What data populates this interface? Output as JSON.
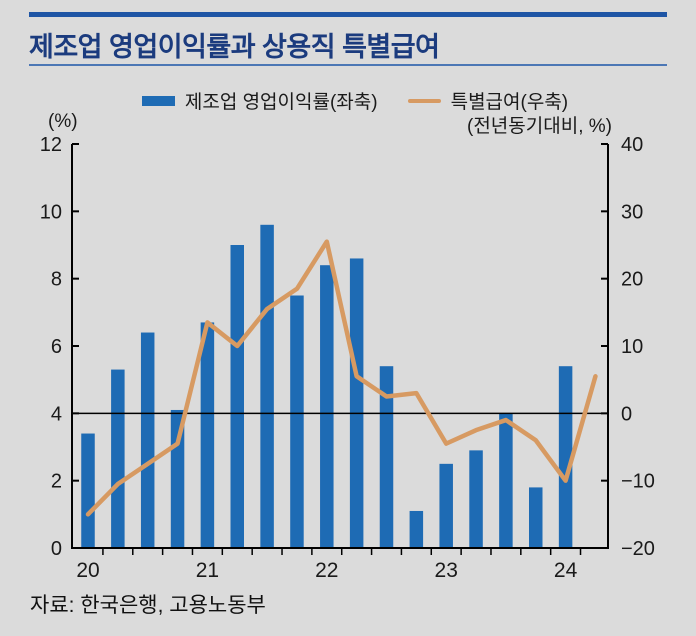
{
  "header": {
    "title": "제조업 영업이익률과 상용직 특별급여"
  },
  "legend": {
    "items": [
      {
        "label": "제조업 영업이익률(좌축)",
        "marker": "bar-swatch",
        "color": "#1e6bb4"
      },
      {
        "label": "특별급여(우축)",
        "marker": "line-swatch",
        "color": "#d79a62"
      }
    ]
  },
  "source": "자료: 한국은행, 고용노동부",
  "colors": {
    "background": "#dbdbdb",
    "bar": "#1e6bb4",
    "line": "#d79a62",
    "title": "#1b3b7e",
    "top_rule": "#1e55a5",
    "title_underline": "#4c77b5",
    "axis": "#000000",
    "tick_label": "#1a1a1a"
  },
  "chart_data": {
    "type": "bar",
    "subtype": "dual-axis bar + line combo",
    "title": "제조업 영업이익률과 상용직 특별급여",
    "categories": [
      "2020Q1",
      "2020Q2",
      "2020Q3",
      "2020Q4",
      "2021Q1",
      "2021Q2",
      "2021Q3",
      "2021Q4",
      "2022Q1",
      "2022Q2",
      "2022Q3",
      "2022Q4",
      "2023Q1",
      "2023Q2",
      "2023Q3",
      "2023Q4",
      "2024Q1",
      "2024Q2"
    ],
    "x_year_labels": [
      "20",
      "21",
      "22",
      "23",
      "24"
    ],
    "series": [
      {
        "name": "제조업 영업이익률(좌축)",
        "type": "bar",
        "axis": "left",
        "color": "#1e6bb4",
        "values": [
          3.4,
          5.3,
          6.4,
          4.1,
          6.7,
          9.0,
          9.6,
          7.5,
          8.4,
          8.6,
          5.4,
          1.1,
          2.5,
          2.9,
          4.0,
          1.8,
          5.4,
          null
        ]
      },
      {
        "name": "특별급여(우축)",
        "type": "line",
        "axis": "right",
        "color": "#d79a62",
        "values": [
          -15,
          -10.5,
          -7.5,
          -4.5,
          13.5,
          10,
          15.5,
          18.5,
          25.5,
          5.5,
          2.5,
          3,
          -4.5,
          -2.5,
          -1,
          -4,
          -10,
          5.5
        ]
      }
    ],
    "left_axis": {
      "unit_label": "(%)",
      "min": 0,
      "max": 12,
      "ticks": [
        12,
        10,
        8,
        6,
        4,
        2,
        0
      ]
    },
    "right_axis": {
      "unit_label": "(전년동기대비, %)",
      "min": -20,
      "max": 40,
      "ticks": [
        40,
        30,
        20,
        10,
        0,
        -10,
        -20
      ]
    },
    "baseline": "black horizontal line at right-axis 0 (= left-axis 4)",
    "grid": "off",
    "legend_position": "top"
  }
}
